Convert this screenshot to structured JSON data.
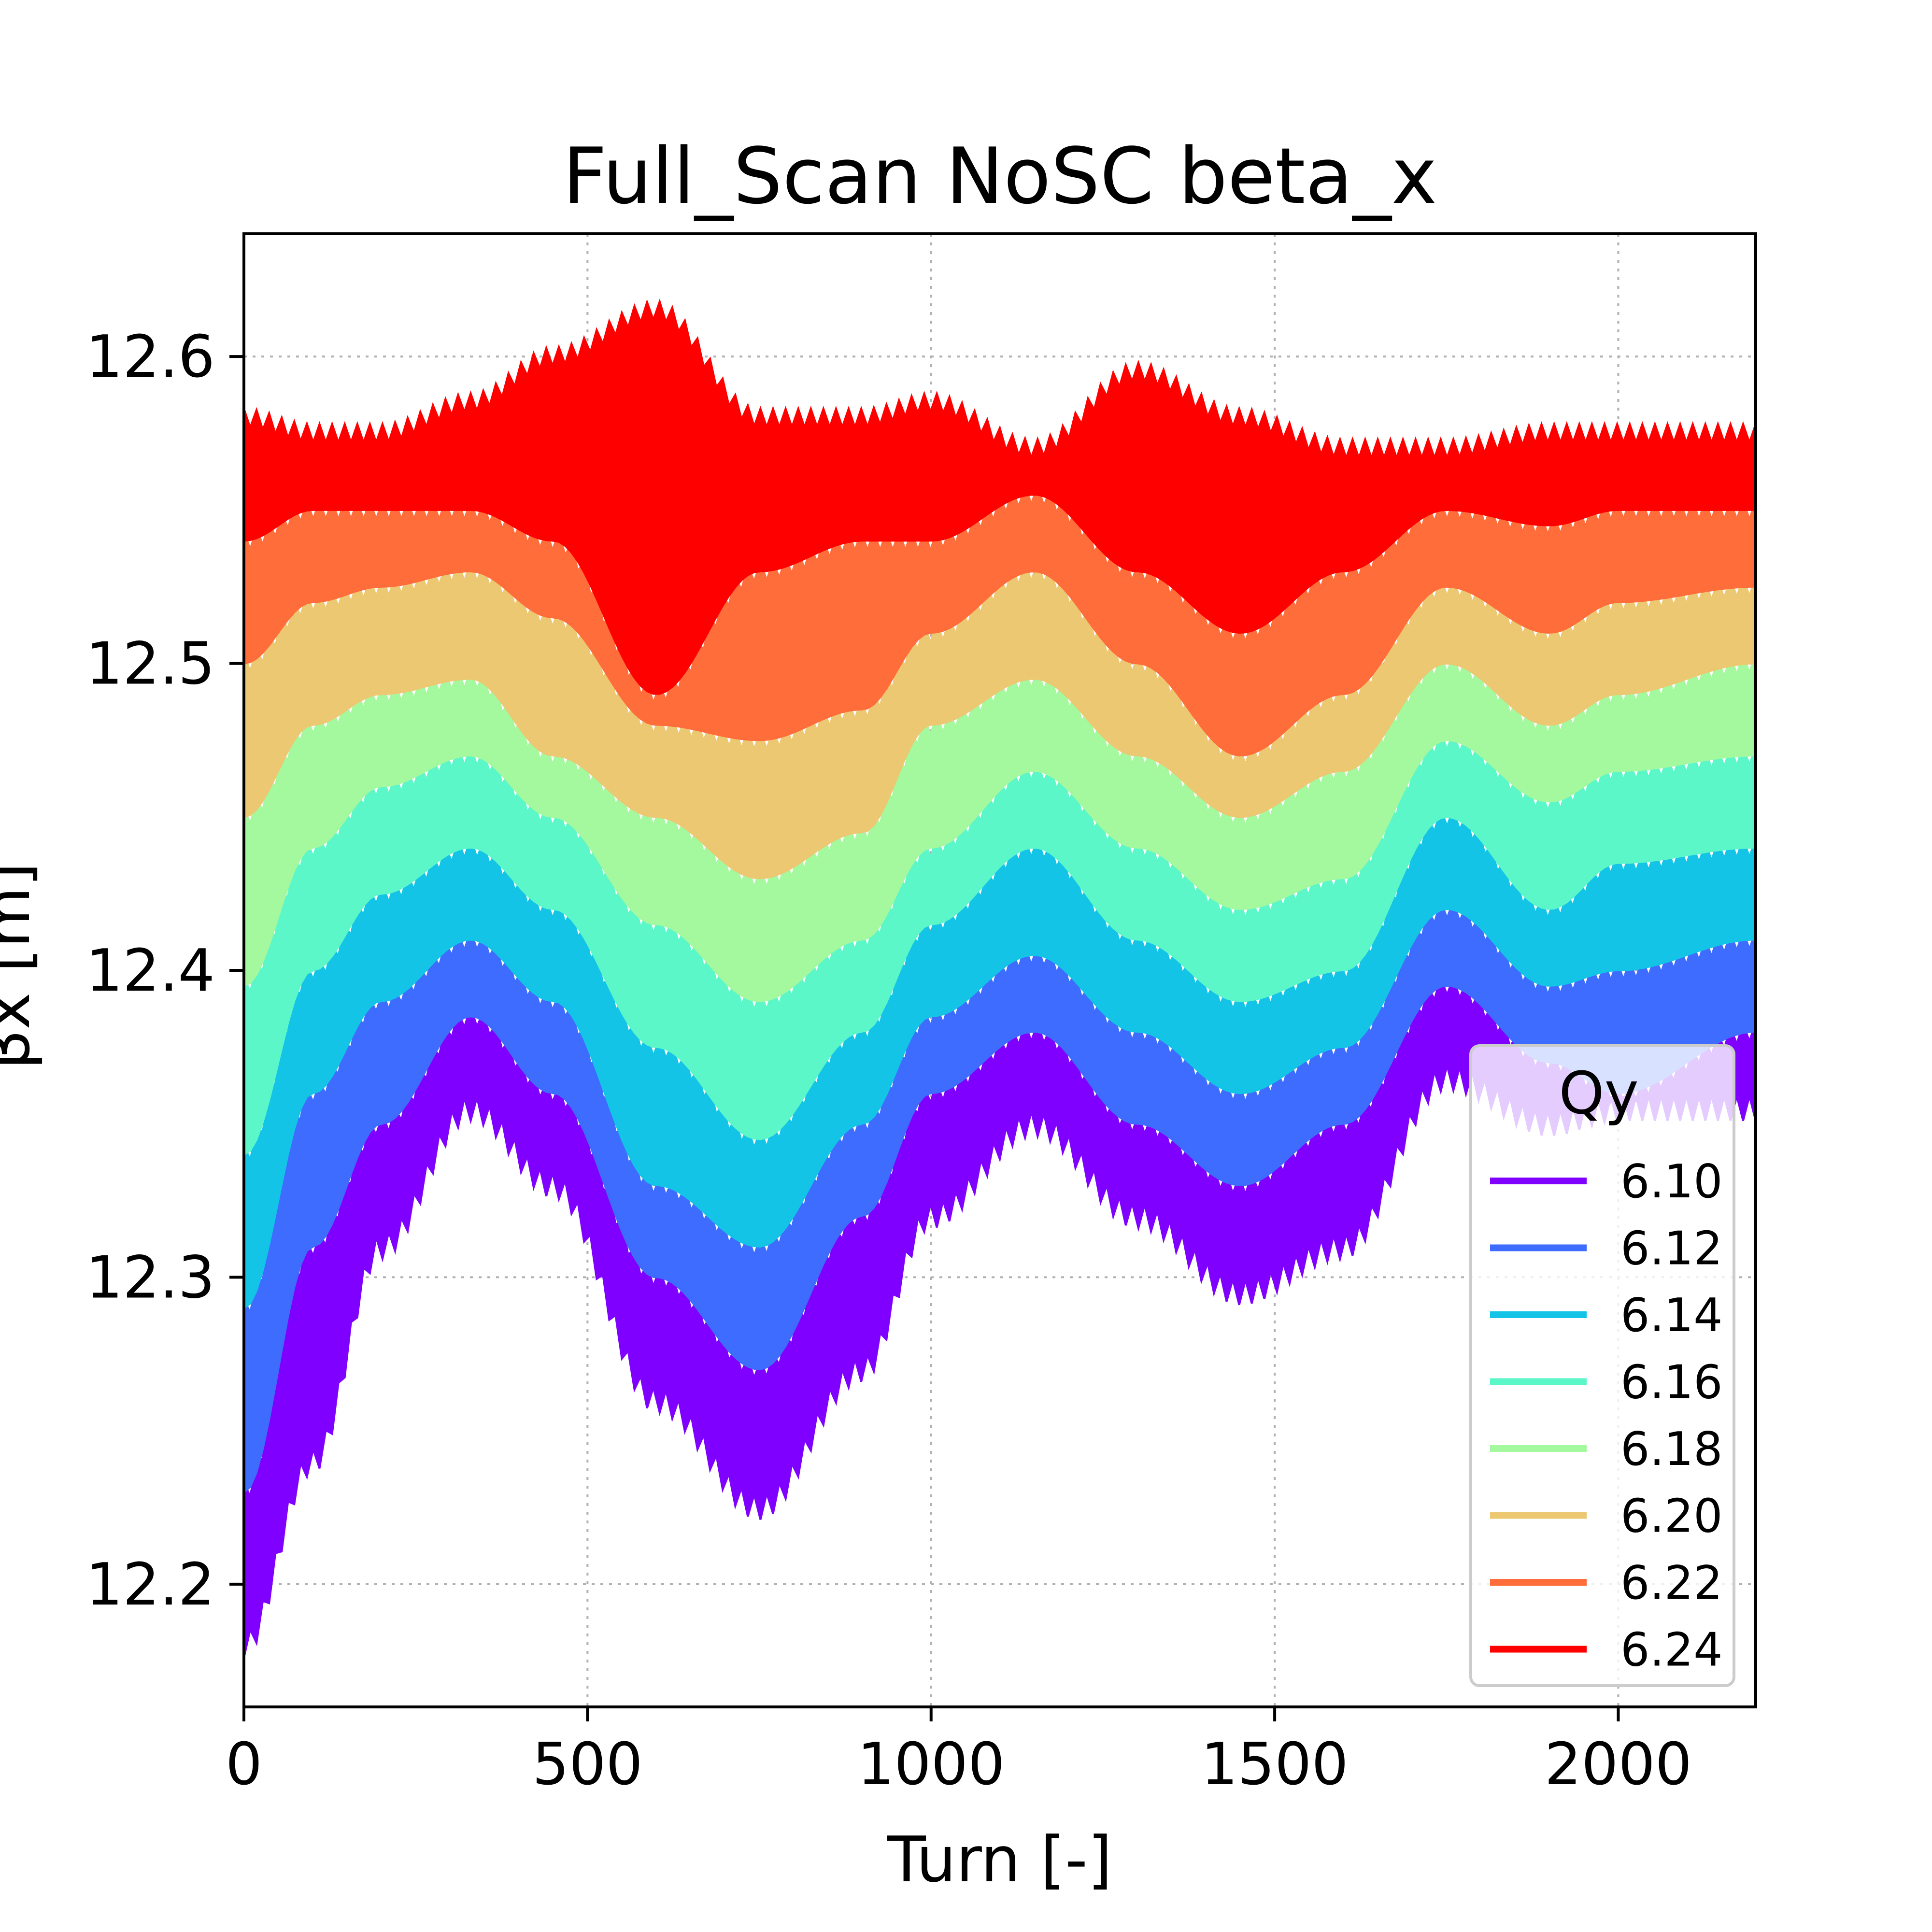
{
  "chart_data": {
    "type": "area",
    "title": "Full_Scan NoSC beta_x",
    "xlabel": "Turn [-]",
    "ylabel": "βx [m]",
    "xlim": [
      0,
      2200
    ],
    "ylim": [
      12.16,
      12.64
    ],
    "xticks": [
      "0",
      "500",
      "1000",
      "1500",
      "2000"
    ],
    "yticks": [
      "12.2",
      "12.3",
      "12.4",
      "12.5",
      "12.6"
    ],
    "grid": true,
    "legend": {
      "title": "Qy",
      "placement": "lower-right",
      "entries": [
        "6.10",
        "6.12",
        "6.14",
        "6.16",
        "6.18",
        "6.20",
        "6.22",
        "6.24"
      ]
    },
    "x": [
      0,
      100,
      200,
      330,
      450,
      600,
      750,
      900,
      1000,
      1150,
      1300,
      1450,
      1600,
      1750,
      1900,
      2000,
      2200
    ],
    "series": [
      {
        "name": "6.10",
        "color": "#7f00ff",
        "upper": [
          12.23,
          12.31,
          12.35,
          12.385,
          12.36,
          12.3,
          12.27,
          12.32,
          12.36,
          12.38,
          12.35,
          12.33,
          12.35,
          12.395,
          12.37,
          12.36,
          12.38
        ],
        "lower": [
          12.18,
          12.24,
          12.31,
          12.355,
          12.33,
          12.26,
          12.225,
          12.27,
          12.32,
          12.35,
          12.32,
          12.295,
          12.31,
          12.365,
          12.35,
          12.355,
          12.355
        ]
      },
      {
        "name": "6.12",
        "color": "#3d6cff",
        "upper": [
          12.29,
          12.36,
          12.39,
          12.41,
          12.39,
          12.33,
          12.31,
          12.35,
          12.385,
          12.405,
          12.38,
          12.36,
          12.375,
          12.42,
          12.395,
          12.4,
          12.41
        ]
      },
      {
        "name": "6.14",
        "color": "#13c4e6",
        "upper": [
          12.34,
          12.4,
          12.425,
          12.44,
          12.42,
          12.375,
          12.345,
          12.38,
          12.415,
          12.44,
          12.41,
          12.39,
          12.4,
          12.45,
          12.42,
          12.435,
          12.44
        ]
      },
      {
        "name": "6.16",
        "color": "#5cf7c8",
        "upper": [
          12.395,
          12.44,
          12.46,
          12.47,
          12.45,
          12.415,
          12.39,
          12.41,
          12.44,
          12.465,
          12.44,
          12.42,
          12.43,
          12.475,
          12.455,
          12.465,
          12.47
        ]
      },
      {
        "name": "6.18",
        "color": "#a4f89d",
        "upper": [
          12.45,
          12.48,
          12.49,
          12.495,
          12.47,
          12.45,
          12.43,
          12.445,
          12.48,
          12.495,
          12.47,
          12.45,
          12.465,
          12.5,
          12.48,
          12.49,
          12.5
        ]
      },
      {
        "name": "6.20",
        "color": "#ecc872",
        "upper": [
          12.5,
          12.52,
          12.525,
          12.53,
          12.515,
          12.48,
          12.475,
          12.485,
          12.51,
          12.53,
          12.5,
          12.47,
          12.49,
          12.525,
          12.51,
          12.52,
          12.525
        ]
      },
      {
        "name": "6.22",
        "color": "#ff6d3b",
        "upper": [
          12.54,
          12.55,
          12.55,
          12.55,
          12.54,
          12.49,
          12.53,
          12.54,
          12.54,
          12.555,
          12.53,
          12.51,
          12.53,
          12.55,
          12.545,
          12.55,
          12.55
        ]
      },
      {
        "name": "6.24",
        "color": "#ff0000",
        "upper": [
          12.58,
          12.575,
          12.575,
          12.585,
          12.6,
          12.615,
          12.58,
          12.58,
          12.585,
          12.57,
          12.595,
          12.58,
          12.57,
          12.57,
          12.575,
          12.575,
          12.575
        ]
      }
    ]
  }
}
